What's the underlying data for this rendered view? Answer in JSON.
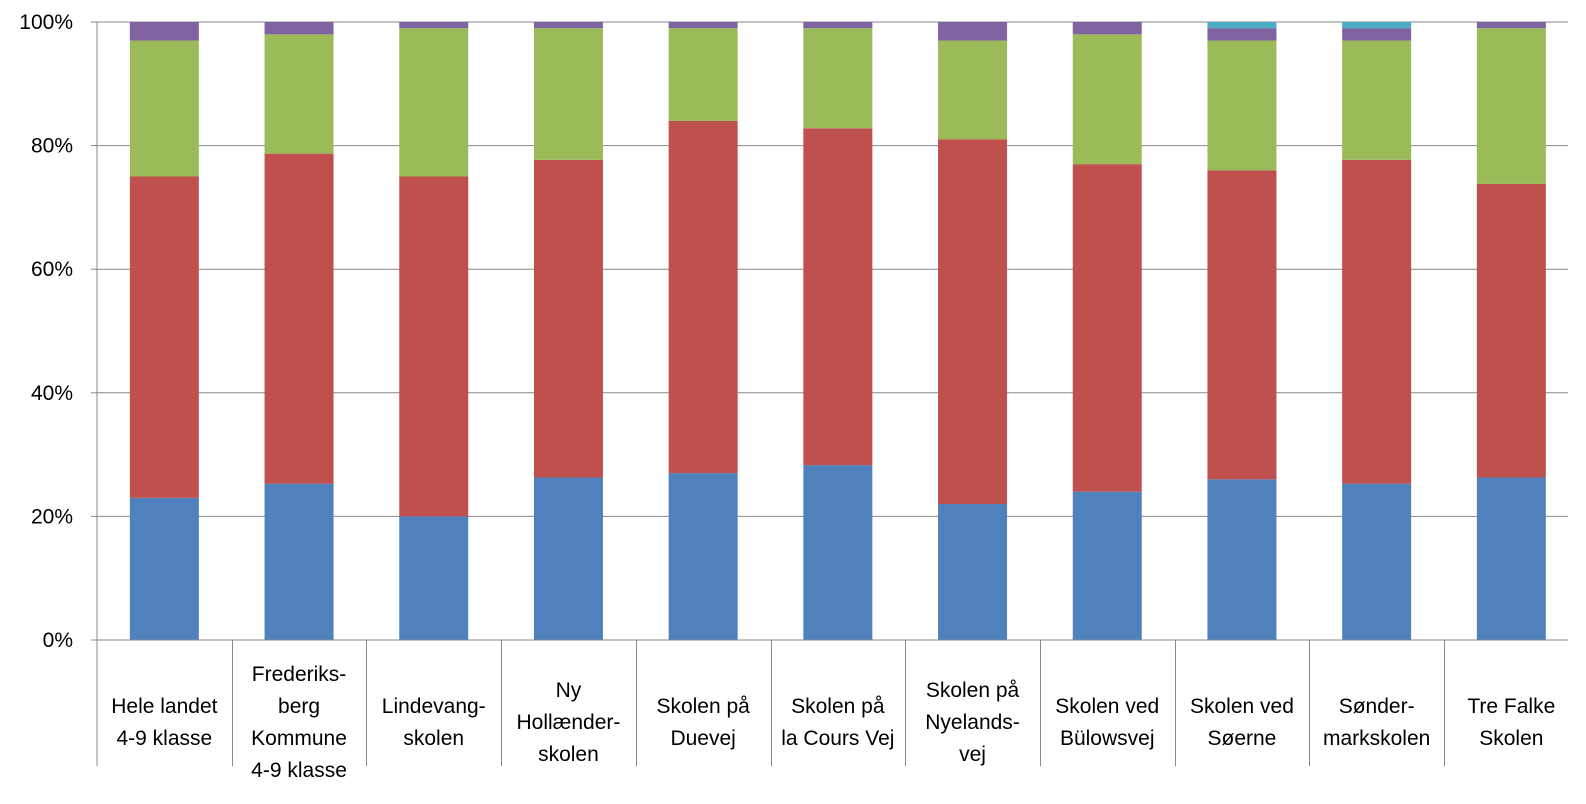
{
  "chart_data": {
    "type": "bar",
    "stacked": true,
    "percent": true,
    "title": "",
    "xlabel": "",
    "ylabel": "",
    "ylim": [
      0,
      100
    ],
    "yticks": [
      "0%",
      "20%",
      "40%",
      "60%",
      "80%",
      "100%"
    ],
    "grid": true,
    "legend": "none",
    "categories": [
      "Hele landet\n4-9 klasse",
      "Frederiks-\nberg\nKommune\n4-9 klasse",
      "Lindevang-\nskolen",
      "Ny\nHollænder-\nskolen",
      "Skolen på\nDuevej",
      "Skolen på\nla Cours Vej",
      "Skolen på\nNyelands-\nvej",
      "Skolen ved\nBülowsvej",
      "Skolen ved\nSøerne",
      "Sønder-\nmarkskolen",
      "Tre Falke\nSkolen"
    ],
    "series": [
      {
        "color": "#4f81bd",
        "values": [
          23,
          25.3,
          20,
          26.3,
          27,
          28.3,
          22,
          24,
          26,
          25.3,
          26.3
        ]
      },
      {
        "color": "#c0504d",
        "values": [
          52,
          53.4,
          55,
          51.4,
          57,
          54.5,
          59,
          53,
          50,
          52.4,
          47.5
        ]
      },
      {
        "color": "#9bbb59",
        "values": [
          22,
          19.3,
          24,
          21.3,
          15,
          16.2,
          16,
          21,
          21,
          19.3,
          25.2
        ]
      },
      {
        "color": "#8064a2",
        "values": [
          3,
          2,
          1,
          1,
          1,
          1,
          3,
          2,
          2,
          2,
          1
        ]
      },
      {
        "color": "#4bacc6",
        "values": [
          0,
          0,
          0,
          0,
          0,
          0,
          0,
          0,
          1,
          1,
          0
        ]
      }
    ]
  }
}
